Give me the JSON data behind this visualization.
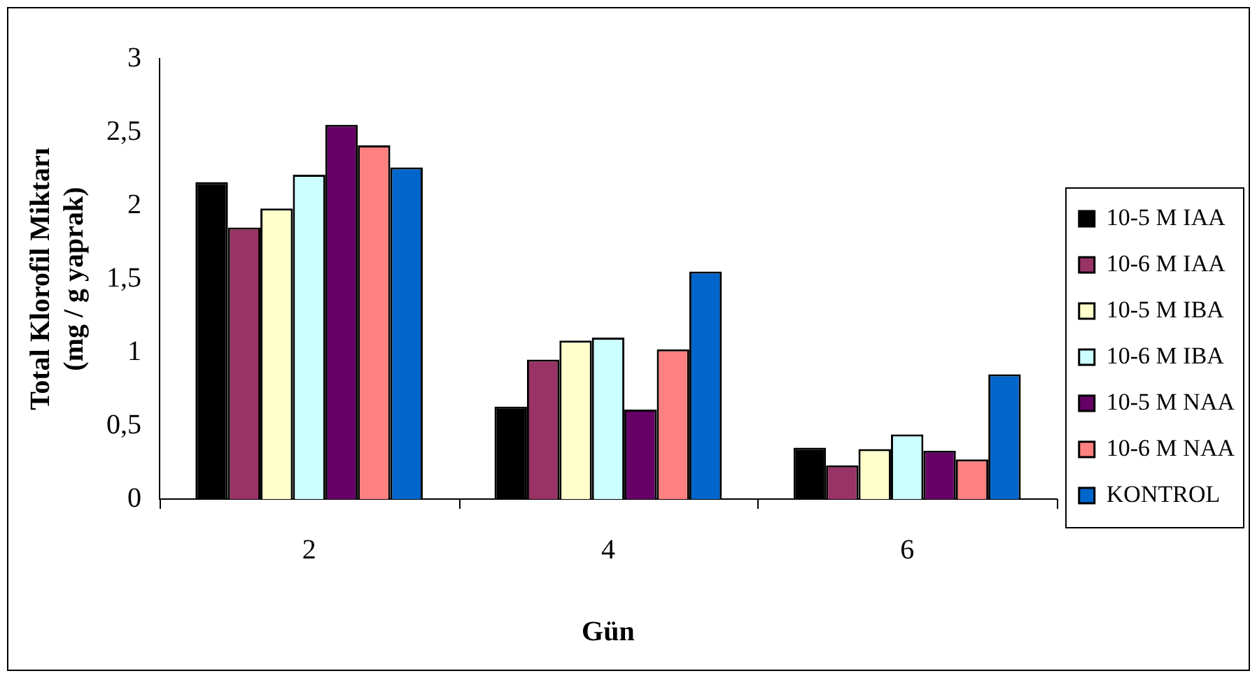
{
  "chart_data": {
    "type": "bar",
    "xlabel": "Gün",
    "ylabel": "Total Klorofil Miktarı\n(mg / g yaprak)",
    "categories": [
      "2",
      "4",
      "6"
    ],
    "series": [
      {
        "name": "10-5 M IAA",
        "color": "#000000",
        "values": [
          2.16,
          0.63,
          0.35
        ]
      },
      {
        "name": "10-6 M IAA",
        "color": "#993366",
        "values": [
          1.85,
          0.95,
          0.23
        ]
      },
      {
        "name": "10-5 M IBA",
        "color": "#ffffcc",
        "values": [
          1.98,
          1.08,
          0.34
        ]
      },
      {
        "name": "10-6 M IBA",
        "color": "#ccffff",
        "values": [
          2.21,
          1.1,
          0.44
        ]
      },
      {
        "name": "10-5 M NAA",
        "color": "#660066",
        "values": [
          2.55,
          0.61,
          0.33
        ]
      },
      {
        "name": "10-6 M NAA",
        "color": "#ff8080",
        "values": [
          2.41,
          1.02,
          0.27
        ]
      },
      {
        "name": "KONTROL",
        "color": "#0066cc",
        "values": [
          2.26,
          1.55,
          0.85
        ]
      }
    ],
    "ylim": [
      0,
      3
    ],
    "yticks": [
      0,
      {
        "value": 0.5,
        "label": "0,5"
      },
      1,
      {
        "value": 1.5,
        "label": "1,5"
      },
      2,
      {
        "value": 2.5,
        "label": "2,5"
      },
      3
    ],
    "grid": false,
    "legend": "right"
  }
}
